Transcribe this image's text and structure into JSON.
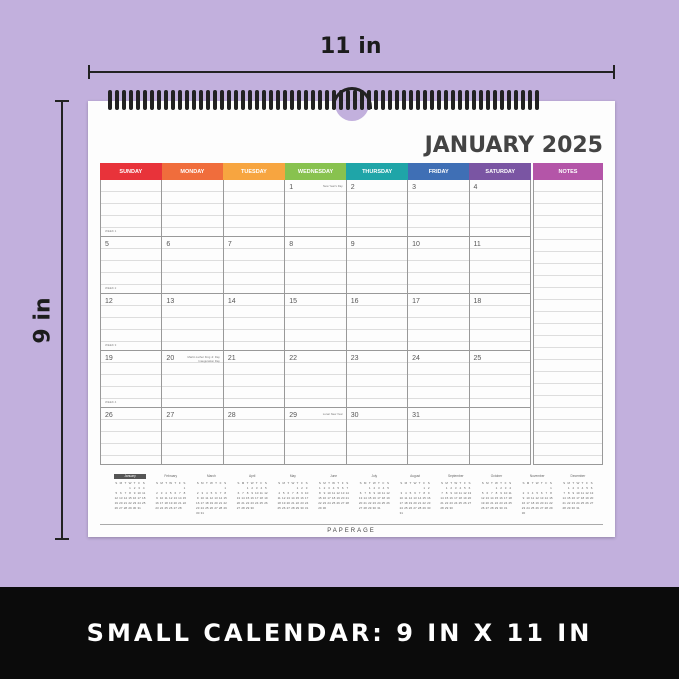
{
  "dimensions": {
    "width_label": "11 in",
    "height_label": "9 in"
  },
  "calendar": {
    "title": "JANUARY 2025",
    "days": [
      {
        "label": "SUNDAY",
        "color": "#e8333a"
      },
      {
        "label": "MONDAY",
        "color": "#f06d3c"
      },
      {
        "label": "TUESDAY",
        "color": "#f7a540"
      },
      {
        "label": "WEDNESDAY",
        "color": "#88c24f"
      },
      {
        "label": "THURSDAY",
        "color": "#1fa5a8"
      },
      {
        "label": "FRIDAY",
        "color": "#3f6fb5"
      },
      {
        "label": "SATURDAY",
        "color": "#7a55a3"
      }
    ],
    "notes_label": "NOTES",
    "weeks": [
      {
        "label": "WEEK 1",
        "cells": [
          {
            "n": ""
          },
          {
            "n": ""
          },
          {
            "n": ""
          },
          {
            "n": "1",
            "h": "New Year's Day"
          },
          {
            "n": "2"
          },
          {
            "n": "3"
          },
          {
            "n": "4"
          }
        ]
      },
      {
        "label": "WEEK 2",
        "cells": [
          {
            "n": "5"
          },
          {
            "n": "6"
          },
          {
            "n": "7"
          },
          {
            "n": "8"
          },
          {
            "n": "9"
          },
          {
            "n": "10"
          },
          {
            "n": "11"
          }
        ]
      },
      {
        "label": "WEEK 3",
        "cells": [
          {
            "n": "12"
          },
          {
            "n": "13"
          },
          {
            "n": "14"
          },
          {
            "n": "15"
          },
          {
            "n": "16"
          },
          {
            "n": "17"
          },
          {
            "n": "18"
          }
        ]
      },
      {
        "label": "WEEK 4",
        "cells": [
          {
            "n": "19"
          },
          {
            "n": "20",
            "h": "Martin Luther King Jr. Day Inauguration Day"
          },
          {
            "n": "21"
          },
          {
            "n": "22"
          },
          {
            "n": "23"
          },
          {
            "n": "24"
          },
          {
            "n": "25"
          }
        ]
      },
      {
        "label": "",
        "cells": [
          {
            "n": "26"
          },
          {
            "n": "27"
          },
          {
            "n": "28"
          },
          {
            "n": "29",
            "h": "Lunar New Year"
          },
          {
            "n": "30"
          },
          {
            "n": "31"
          },
          {
            "n": ""
          }
        ]
      }
    ],
    "mini_year": 2025,
    "mini_weekdays": [
      "S",
      "M",
      "T",
      "W",
      "T",
      "F",
      "S"
    ],
    "mini_months": [
      "January",
      "February",
      "March",
      "April",
      "May",
      "June",
      "July",
      "August",
      "September",
      "October",
      "November",
      "December"
    ],
    "brand": "PAPERAGE"
  },
  "banner": "SMALL CALENDAR: 9 IN X 11 IN"
}
